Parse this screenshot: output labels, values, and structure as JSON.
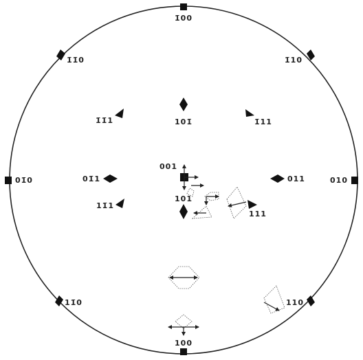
{
  "nodes": [
    {
      "label": "1̄00"
    },
    {
      "label": "1̄1̄0"
    },
    {
      "label": "1̄10"
    },
    {
      "label": "01̄0"
    },
    {
      "label": "010"
    },
    {
      "label": "1̄1̄1"
    },
    {
      "label": "101̄"
    },
    {
      "label": "1̄11"
    },
    {
      "label": "01̄1"
    },
    {
      "label": "001"
    },
    {
      "label": "011"
    },
    {
      "label": "11̄1"
    },
    {
      "label": "101"
    },
    {
      "label": "111"
    },
    {
      "label": "11̄0"
    },
    {
      "label": "110"
    },
    {
      "label": "100"
    }
  ]
}
